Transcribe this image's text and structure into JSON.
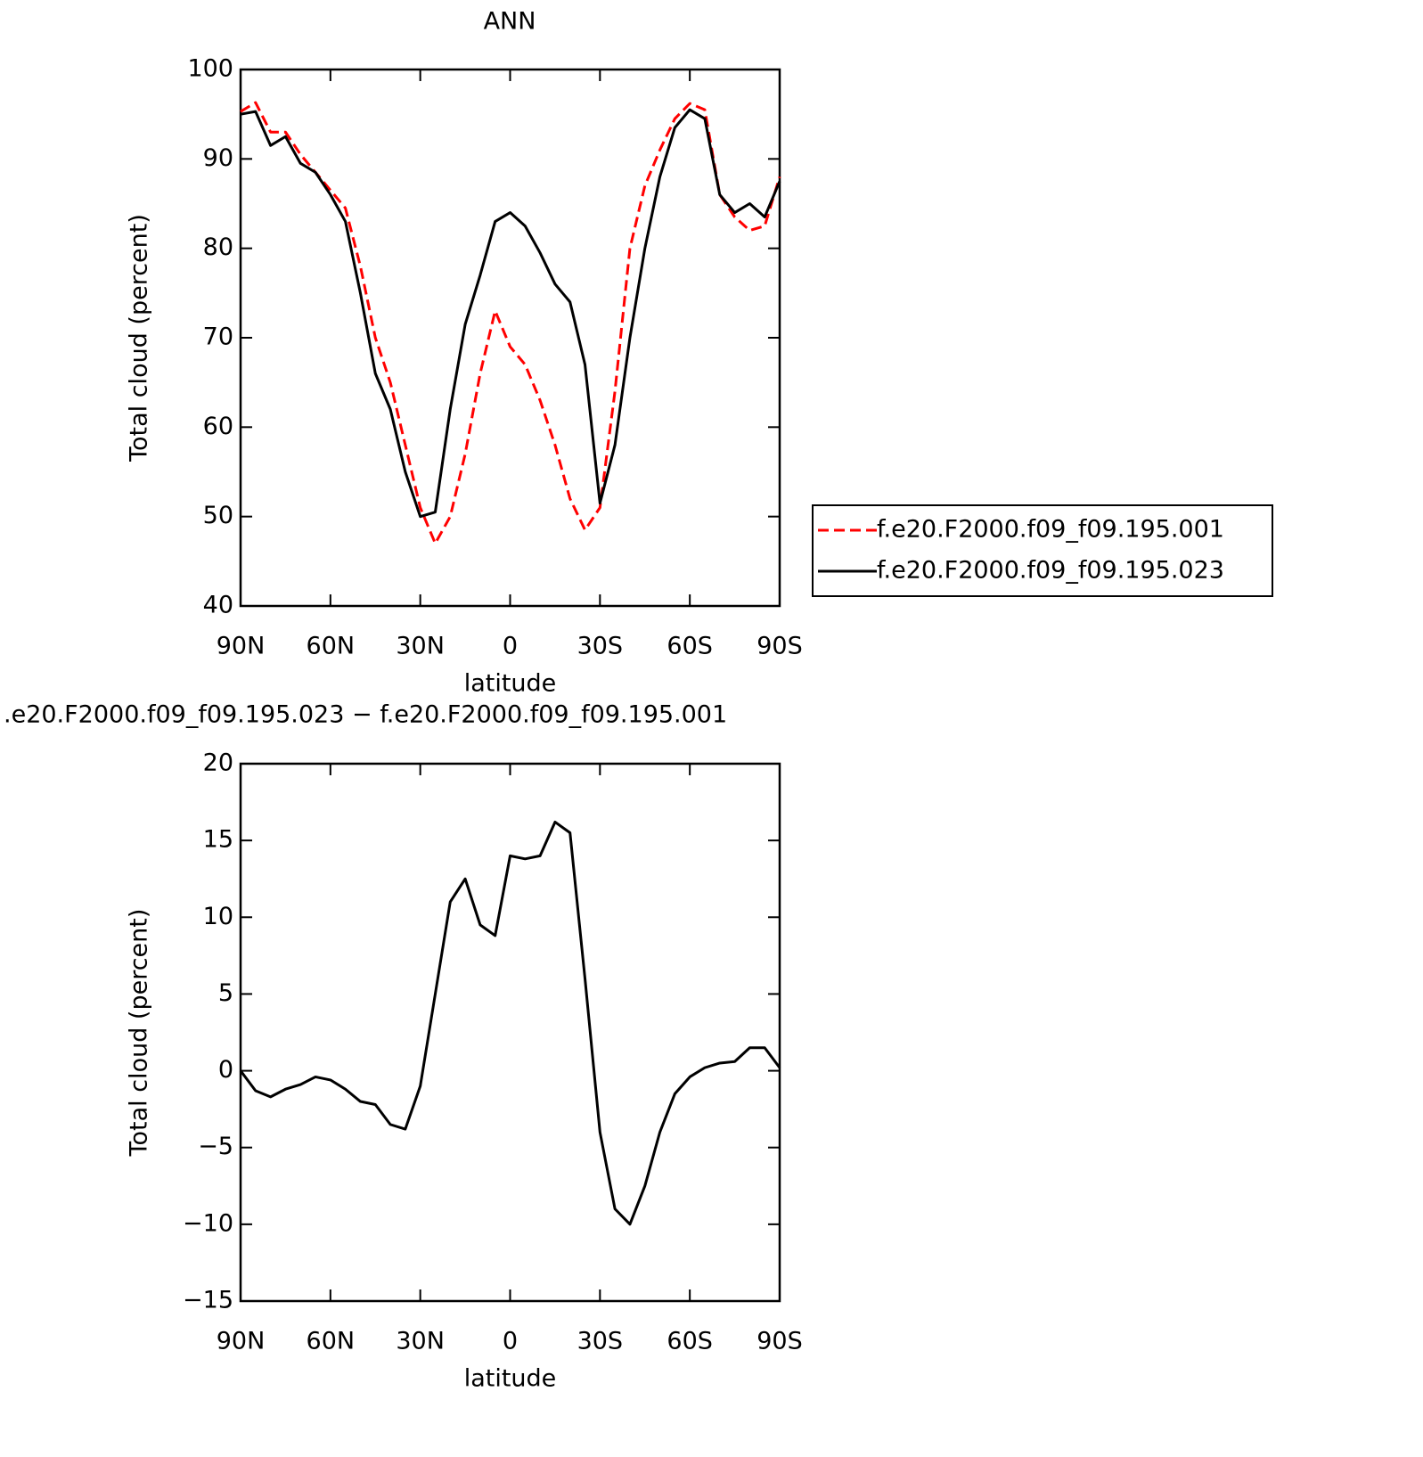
{
  "chart_data": [
    {
      "type": "line",
      "title": "ANN",
      "xlabel": "latitude",
      "ylabel": "Total cloud (percent)",
      "x": [
        90,
        85,
        80,
        75,
        70,
        65,
        60,
        55,
        50,
        45,
        40,
        35,
        30,
        25,
        20,
        15,
        10,
        5,
        0,
        -5,
        -10,
        -15,
        -20,
        -25,
        -30,
        -35,
        -40,
        -45,
        -50,
        -55,
        -60,
        -65,
        -70,
        -75,
        -80,
        -85,
        -90
      ],
      "xlim": [
        90,
        -90
      ],
      "xticks": [
        {
          "value": 90,
          "label": "90N"
        },
        {
          "value": 60,
          "label": "60N"
        },
        {
          "value": 30,
          "label": "30N"
        },
        0,
        {
          "value": -30,
          "label": "30S"
        },
        {
          "value": -60,
          "label": "60S"
        },
        {
          "value": -90,
          "label": "90S"
        }
      ],
      "ylim": [
        40,
        100
      ],
      "yticks": [
        40,
        50,
        60,
        70,
        80,
        90,
        100
      ],
      "legend": "right",
      "series": [
        {
          "name": "f.e20.F2000.f09_f09.195.001",
          "color": "#ff0000",
          "dash": "dashed",
          "values": [
            95.3,
            96.3,
            93,
            93,
            90.5,
            88.5,
            86.5,
            84.5,
            78,
            70,
            65,
            58,
            51,
            47,
            50,
            57,
            66,
            73,
            69,
            67,
            63,
            58,
            52,
            48.5,
            51,
            64,
            80,
            87,
            91,
            94.5,
            96.2,
            95.5,
            86,
            83.5,
            82,
            82.5,
            88
          ]
        },
        {
          "name": "f.e20.F2000.f09_f09.195.023",
          "color": "#000000",
          "dash": "solid",
          "values": [
            95,
            95.3,
            91.5,
            92.5,
            89.5,
            88.5,
            86,
            83,
            75,
            66,
            62,
            55,
            50,
            50.5,
            62,
            71.5,
            77,
            83,
            84,
            82.5,
            79.5,
            76,
            74,
            67,
            51.5,
            58,
            70,
            80,
            88,
            93.5,
            95.5,
            94.5,
            86,
            84,
            85,
            83.5,
            87.5
          ]
        }
      ]
    },
    {
      "type": "line",
      "title": ".e20.F2000.f09_f09.195.023 − f.e20.F2000.f09_f09.195.001",
      "xlabel": "latitude",
      "ylabel": "Total cloud (percent)",
      "x": [
        90,
        85,
        80,
        75,
        70,
        65,
        60,
        55,
        50,
        45,
        40,
        35,
        30,
        25,
        20,
        15,
        10,
        5,
        0,
        -5,
        -10,
        -15,
        -20,
        -25,
        -30,
        -35,
        -40,
        -45,
        -50,
        -55,
        -60,
        -65,
        -70,
        -75,
        -80,
        -85,
        -90
      ],
      "xlim": [
        90,
        -90
      ],
      "xticks": [
        {
          "value": 90,
          "label": "90N"
        },
        {
          "value": 60,
          "label": "60N"
        },
        {
          "value": 30,
          "label": "30N"
        },
        0,
        {
          "value": -30,
          "label": "30S"
        },
        {
          "value": -60,
          "label": "60S"
        },
        {
          "value": -90,
          "label": "90S"
        }
      ],
      "ylim": [
        -15,
        20
      ],
      "yticks": [
        {
          "value": -15,
          "label": "−15"
        },
        {
          "value": -10,
          "label": "−10"
        },
        {
          "value": -5,
          "label": "−5"
        },
        0,
        5,
        10,
        15,
        20
      ],
      "color": "#000000",
      "values": [
        0,
        -1.3,
        -1.7,
        -1.2,
        -0.9,
        -0.4,
        -0.6,
        -1.2,
        -2,
        -2.2,
        -3.5,
        -3.8,
        -1,
        5,
        11,
        12.5,
        9.5,
        8.8,
        14,
        13.8,
        14,
        16.2,
        15.5,
        6,
        -4,
        -9,
        -10,
        -7.5,
        -4,
        -1.5,
        -0.4,
        0.2,
        0.5,
        0.6,
        1.5,
        1.5,
        0.2
      ]
    }
  ]
}
